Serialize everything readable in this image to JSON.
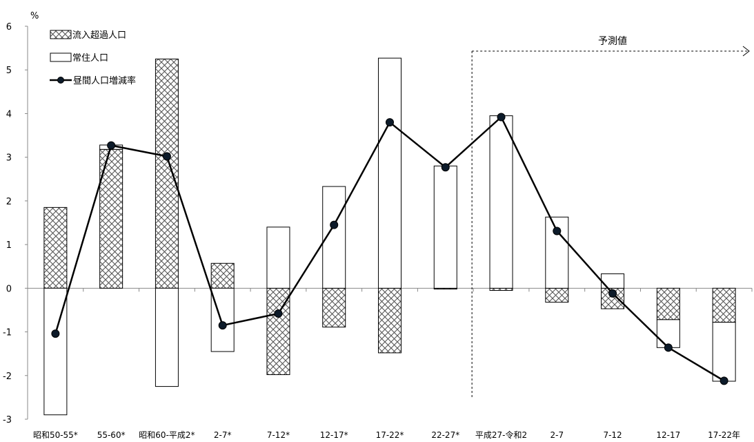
{
  "chart_data": {
    "type": "bar",
    "unit": "%",
    "categories": [
      "昭和50-55*",
      "55-60*",
      "昭和60-平成2*",
      "2-7*",
      "7-12*",
      "12-17*",
      "17-22*",
      "22-27*",
      "平成27-令和2",
      "2-7",
      "7-12",
      "12-17",
      "17-22年"
    ],
    "series": [
      {
        "name": "流入超過人口",
        "kind": "bar",
        "pattern": "crosshatch",
        "values": [
          1.85,
          3.18,
          5.25,
          0.57,
          -1.98,
          -0.89,
          -1.48,
          -0.02,
          -0.05,
          -0.32,
          -0.47,
          -0.72,
          -0.78
        ]
      },
      {
        "name": "常住人口",
        "kind": "bar",
        "pattern": "none",
        "values": [
          -2.9,
          0.1,
          -2.25,
          -1.45,
          1.4,
          2.33,
          5.27,
          2.8,
          3.95,
          1.63,
          0.33,
          -0.64,
          -1.35
        ]
      },
      {
        "name": "昼間人口増減率",
        "kind": "line",
        "values": [
          -1.04,
          3.27,
          3.02,
          -0.85,
          -0.58,
          1.45,
          3.8,
          2.77,
          3.92,
          1.31,
          -0.12,
          -1.36,
          -2.12
        ]
      }
    ],
    "ylim": [
      -3,
      6
    ],
    "yticks": [
      -3,
      -2,
      -1,
      0,
      1,
      2,
      3,
      4,
      5,
      6
    ],
    "legend_position": "top-left",
    "annotation": "予測値",
    "forecast_start_category": "平成27-令和2"
  }
}
